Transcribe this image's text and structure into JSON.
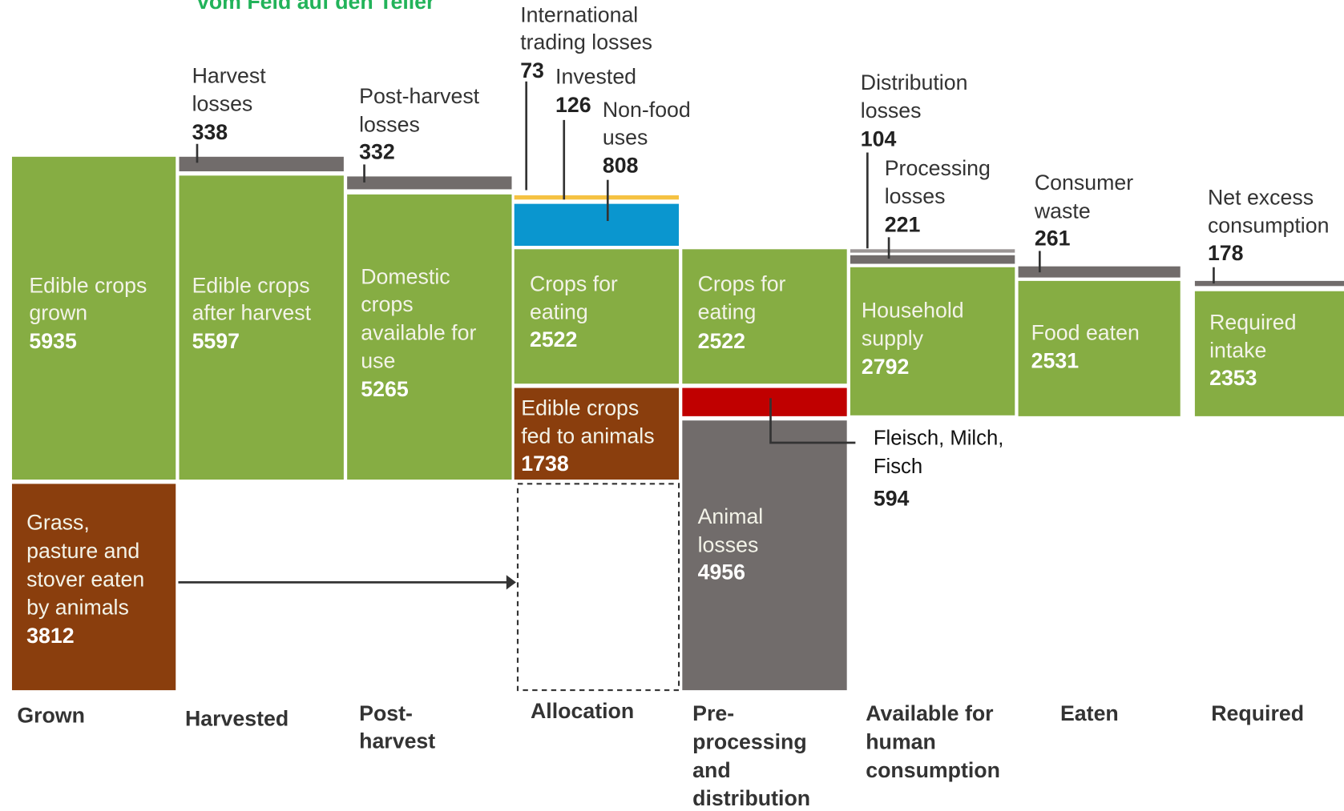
{
  "title": "vom Feld auf den Teller",
  "blocks": [
    {
      "label": [
        "Edible crops",
        "grown"
      ],
      "value": "5935"
    },
    {
      "label": [
        "Edible crops",
        "after harvest"
      ],
      "value": "5597"
    },
    {
      "label": [
        "Domestic",
        "crops",
        "available for",
        "use"
      ],
      "value": "5265"
    },
    {
      "label": [
        "Crops for",
        "eating"
      ],
      "value": "2522"
    },
    {
      "label": [
        "Edible crops",
        "fed to animals"
      ],
      "value": "1738"
    },
    {
      "label": [
        "Crops for",
        "eating"
      ],
      "value": "2522"
    },
    {
      "label": [
        "Animal",
        "losses"
      ],
      "value": "4956"
    },
    {
      "label": [
        "Household",
        "supply"
      ],
      "value": "2792"
    },
    {
      "label": [
        "Food eaten"
      ],
      "value": "2531"
    },
    {
      "label": [
        "Required",
        "intake"
      ],
      "value": "2353"
    },
    {
      "label": [
        "Grass,",
        "pasture and",
        "stover eaten",
        "by animals"
      ],
      "value": "3812"
    }
  ],
  "losses": [
    {
      "label": [
        "Harvest",
        "losses"
      ],
      "value": "338"
    },
    {
      "label": [
        "Post-harvest",
        "losses"
      ],
      "value": "332"
    },
    {
      "label": [
        "International",
        "trading losses"
      ],
      "value": "73"
    },
    {
      "label": [
        "Invested"
      ],
      "value": "126"
    },
    {
      "label": [
        "Non-food",
        "uses"
      ],
      "value": "808"
    },
    {
      "label": [
        "Distribution",
        "losses"
      ],
      "value": "104"
    },
    {
      "label": [
        "Processing",
        "losses"
      ],
      "value": "221"
    },
    {
      "label": [
        "Consumer",
        "waste"
      ],
      "value": "261"
    },
    {
      "label": [
        "Net excess",
        "consumption"
      ],
      "value": "178"
    }
  ],
  "annotation": {
    "label": [
      "Fleisch, Milch,",
      "Fisch"
    ],
    "value": "594"
  },
  "stages": [
    [
      "Grown"
    ],
    [
      "Harvested"
    ],
    [
      "Post-",
      "harvest"
    ],
    [
      "Allocation"
    ],
    [
      "Pre-",
      "processing",
      "and",
      "distribution"
    ],
    [
      "Available for",
      "human",
      "consumption"
    ],
    [
      "Eaten"
    ],
    [
      "Required"
    ]
  ]
}
